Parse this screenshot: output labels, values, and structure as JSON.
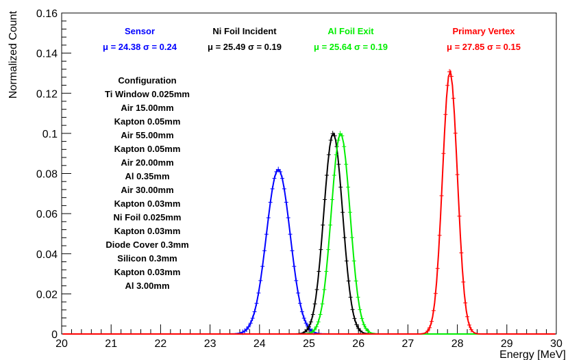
{
  "chart_data": {
    "type": "line",
    "title": "",
    "xlabel": "Energy [MeV]",
    "ylabel": "Normalized Count",
    "xlim": [
      20,
      30
    ],
    "ylim": [
      0,
      0.16
    ],
    "x_ticks": [
      "20",
      "21",
      "22",
      "23",
      "24",
      "25",
      "26",
      "27",
      "28",
      "29",
      "30"
    ],
    "y_ticks": [
      "0",
      "0.02",
      "0.04",
      "0.06",
      "0.08",
      "0.1",
      "0.12",
      "0.14",
      "0.16"
    ],
    "grid": false,
    "legend_position": "top",
    "series": [
      {
        "name": "Sensor",
        "color": "#0000ff",
        "stats": "μ = 24.38  σ = 0.24",
        "mean": 24.38,
        "sigma": 0.24,
        "peak": 0.082
      },
      {
        "name": "Ni Foil Incident",
        "color": "#000000",
        "stats": "μ = 25.49  σ = 0.19",
        "mean": 25.49,
        "sigma": 0.19,
        "peak": 0.1
      },
      {
        "name": "Al Foil Exit",
        "color": "#00ee00",
        "stats": "μ = 25.64  σ = 0.19",
        "mean": 25.64,
        "sigma": 0.19,
        "peak": 0.1
      },
      {
        "name": "Primary Vertex",
        "color": "#ff0000",
        "stats": "μ = 27.85  σ = 0.15",
        "mean": 27.85,
        "sigma": 0.15,
        "peak": 0.131
      }
    ],
    "configuration": {
      "title": "Configuration",
      "layers": [
        "Ti Window 0.025mm",
        "Air 15.00mm",
        "Kapton 0.05mm",
        "Air 55.00mm",
        "Kapton 0.05mm",
        "Air 20.00mm",
        "Al 0.35mm",
        "Air 30.00mm",
        "Kapton 0.03mm",
        "Ni Foil 0.025mm",
        "Kapton 0.03mm",
        "Diode Cover 0.3mm",
        "Silicon 0.3mm",
        "Kapton 0.03mm",
        "Al 3.00mm"
      ]
    }
  }
}
